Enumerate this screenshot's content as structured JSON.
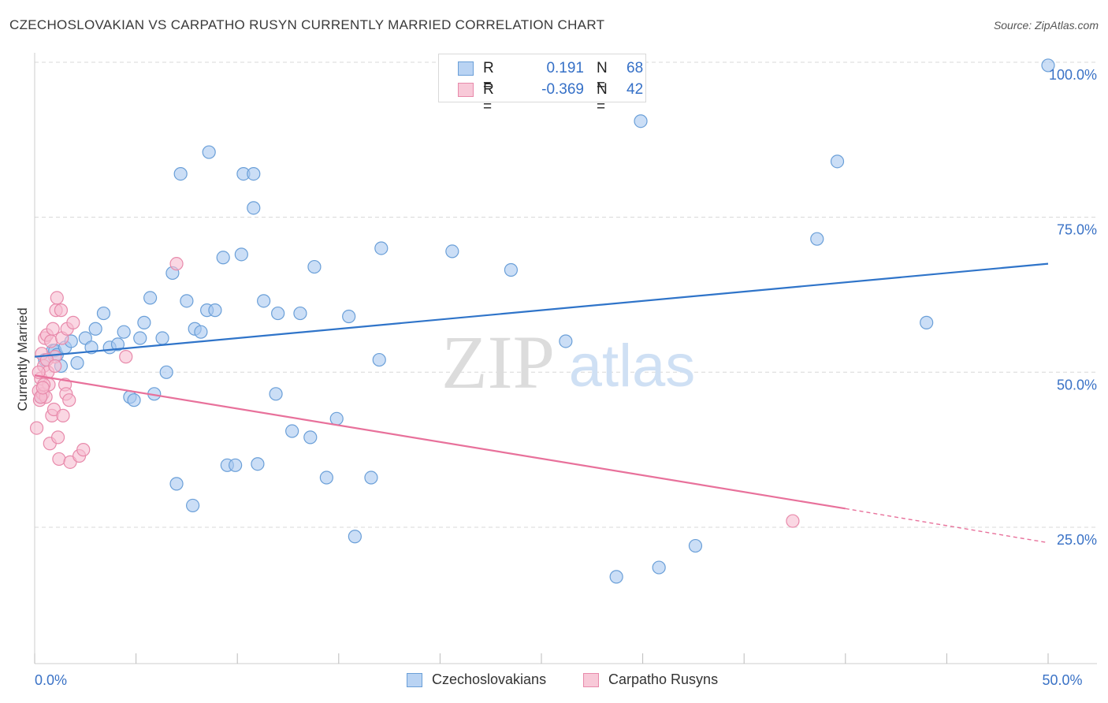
{
  "title": "CZECHOSLOVAKIAN VS CARPATHO RUSYN CURRENTLY MARRIED CORRELATION CHART",
  "source": "Source: ZipAtlas.com",
  "legend": {
    "r_label": "R =",
    "n_label": "N =",
    "series": [
      {
        "name": "Czechoslovakians",
        "r": "0.191",
        "n": "68"
      },
      {
        "name": "Carpatho Rusyns",
        "r": "-0.369",
        "n": "42"
      }
    ]
  },
  "watermark": {
    "zip": "ZIP",
    "atlas": "atlas"
  },
  "colors": {
    "blue_fill": "#a9c8f0",
    "blue_stroke": "#6a9fd8",
    "blue_line": "#2f74c9",
    "pink_fill": "#f6bcd0",
    "pink_stroke": "#e88aab",
    "pink_line": "#e8719b",
    "tick_label": "#3a72c6",
    "grid": "#d8d8d8"
  },
  "chart_data": {
    "type": "scatter",
    "xlabel": "",
    "ylabel": "Currently Married",
    "xlim": [
      0,
      50
    ],
    "ylim": [
      3,
      100
    ],
    "x_tick_labels": [
      {
        "value": 0,
        "label": "0.0%"
      },
      {
        "value": 50,
        "label": "50.0%"
      }
    ],
    "y_tick_labels": [
      {
        "value": 100,
        "label": "100.0%"
      },
      {
        "value": 75,
        "label": "75.0%"
      },
      {
        "value": 50,
        "label": "50.0%"
      },
      {
        "value": 25,
        "label": "25.0%"
      }
    ],
    "grid": true,
    "series": [
      {
        "name": "Czechoslovakians",
        "color": "#6a9fd8",
        "trend": {
          "x": [
            0,
            50
          ],
          "y": [
            52.5,
            67.5
          ],
          "dashed_after": null
        },
        "points": [
          [
            0.3,
            46
          ],
          [
            0.5,
            52
          ],
          [
            0.9,
            53.5
          ],
          [
            1.0,
            53.5
          ],
          [
            1.1,
            52.8
          ],
          [
            1.3,
            51
          ],
          [
            1.5,
            54
          ],
          [
            1.8,
            55
          ],
          [
            2.1,
            51.5
          ],
          [
            2.5,
            55.5
          ],
          [
            2.8,
            54
          ],
          [
            3.0,
            57
          ],
          [
            3.4,
            59.5
          ],
          [
            3.7,
            54
          ],
          [
            4.1,
            54.5
          ],
          [
            4.4,
            56.5
          ],
          [
            4.7,
            46
          ],
          [
            4.9,
            45.5
          ],
          [
            5.2,
            55.5
          ],
          [
            5.4,
            58
          ],
          [
            5.7,
            62
          ],
          [
            5.9,
            46.5
          ],
          [
            6.3,
            55.5
          ],
          [
            6.5,
            50
          ],
          [
            6.8,
            66
          ],
          [
            7.0,
            32
          ],
          [
            7.2,
            82
          ],
          [
            7.5,
            61.5
          ],
          [
            7.8,
            28.5
          ],
          [
            7.9,
            57
          ],
          [
            8.2,
            56.5
          ],
          [
            8.5,
            60
          ],
          [
            8.6,
            85.5
          ],
          [
            8.9,
            60
          ],
          [
            9.3,
            68.5
          ],
          [
            9.5,
            35
          ],
          [
            9.9,
            35
          ],
          [
            10.2,
            69
          ],
          [
            10.3,
            82
          ],
          [
            10.8,
            82
          ],
          [
            10.8,
            76.5
          ],
          [
            11.0,
            35.2
          ],
          [
            11.3,
            61.5
          ],
          [
            11.9,
            46.5
          ],
          [
            12.0,
            59.5
          ],
          [
            12.7,
            40.5
          ],
          [
            13.1,
            59.5
          ],
          [
            13.6,
            39.5
          ],
          [
            13.8,
            67
          ],
          [
            14.4,
            33
          ],
          [
            14.9,
            42.5
          ],
          [
            15.5,
            59
          ],
          [
            15.8,
            23.5
          ],
          [
            16.6,
            33
          ],
          [
            17.0,
            52
          ],
          [
            17.1,
            70
          ],
          [
            20.6,
            69.5
          ],
          [
            23.5,
            66.5
          ],
          [
            26.2,
            55
          ],
          [
            28.7,
            17
          ],
          [
            29.9,
            90.5
          ],
          [
            30.8,
            18.5
          ],
          [
            32.6,
            22
          ],
          [
            38.6,
            71.5
          ],
          [
            39.6,
            84
          ],
          [
            44.0,
            58
          ],
          [
            50.0,
            99.5
          ],
          [
            27.3,
            100
          ]
        ]
      },
      {
        "name": "Carpatho Rusyns",
        "color": "#e88aab",
        "trend": {
          "x": [
            0,
            40
          ],
          "y": [
            49.5,
            28
          ],
          "dashed_to": [
            50,
            22.5
          ]
        },
        "points": [
          [
            0.1,
            41
          ],
          [
            0.2,
            47
          ],
          [
            0.25,
            45.5
          ],
          [
            0.3,
            49
          ],
          [
            0.35,
            53
          ],
          [
            0.4,
            46.5
          ],
          [
            0.45,
            51
          ],
          [
            0.5,
            55.5
          ],
          [
            0.6,
            56
          ],
          [
            0.65,
            50
          ],
          [
            0.7,
            48
          ],
          [
            0.75,
            38.5
          ],
          [
            0.8,
            55
          ],
          [
            0.85,
            43
          ],
          [
            0.9,
            57
          ],
          [
            0.95,
            44
          ],
          [
            1.0,
            52.5
          ],
          [
            1.05,
            60
          ],
          [
            1.1,
            62
          ],
          [
            1.15,
            39.5
          ],
          [
            1.2,
            36
          ],
          [
            1.3,
            60
          ],
          [
            1.35,
            55.5
          ],
          [
            1.4,
            43
          ],
          [
            1.5,
            48
          ],
          [
            1.55,
            46.5
          ],
          [
            1.6,
            57
          ],
          [
            1.7,
            45.5
          ],
          [
            1.75,
            35.5
          ],
          [
            1.9,
            58
          ],
          [
            2.2,
            36.5
          ],
          [
            2.4,
            37.5
          ],
          [
            4.5,
            52.5
          ],
          [
            7.0,
            67.5
          ],
          [
            37.4,
            26
          ],
          [
            0.55,
            46
          ],
          [
            0.6,
            52
          ],
          [
            0.3,
            46
          ],
          [
            0.45,
            48
          ],
          [
            1.0,
            51
          ],
          [
            0.2,
            50
          ],
          [
            0.4,
            47.5
          ]
        ]
      }
    ]
  }
}
